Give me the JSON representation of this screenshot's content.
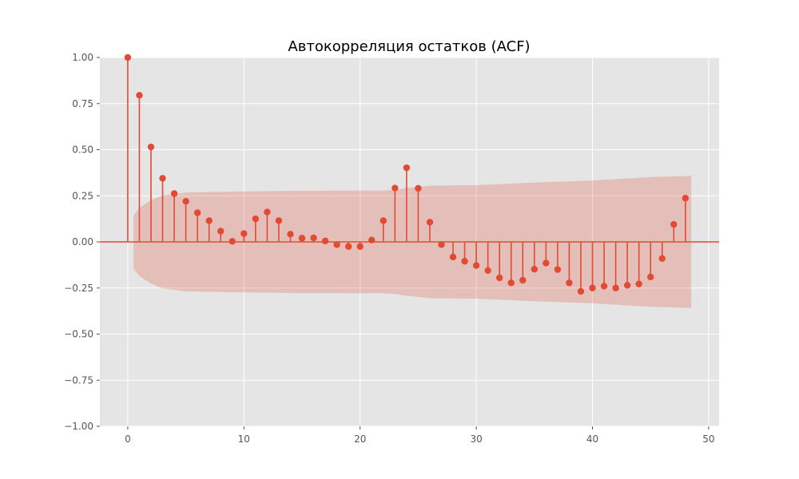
{
  "chart_data": {
    "type": "stem",
    "title": "Автокорреляция остатков (ACF)",
    "xlabel": "",
    "ylabel": "",
    "xlim": [
      -2.4,
      50.9
    ],
    "ylim": [
      -1.0,
      1.0
    ],
    "x_ticks": [
      0,
      10,
      20,
      30,
      40,
      50
    ],
    "y_ticks": [
      -1.0,
      -0.75,
      -0.5,
      -0.25,
      0.0,
      0.25,
      0.5,
      0.75,
      1.0
    ],
    "x_tick_labels": [
      "0",
      "10",
      "20",
      "30",
      "40",
      "50"
    ],
    "y_tick_labels": [
      "−1.00",
      "−0.75",
      "−0.50",
      "−0.25",
      "0.00",
      "0.25",
      "0.50",
      "0.75",
      "1.00"
    ],
    "grid": true,
    "colors": {
      "stem": "#E24A33",
      "band": "#E24A33",
      "plot_bg": "#E5E5E5",
      "grid": "#FFFFFF",
      "tick_text": "#555555"
    },
    "lags": [
      0,
      1,
      2,
      3,
      4,
      5,
      6,
      7,
      8,
      9,
      10,
      11,
      12,
      13,
      14,
      15,
      16,
      17,
      18,
      19,
      20,
      21,
      22,
      23,
      24,
      25,
      26,
      27,
      28,
      29,
      30,
      31,
      32,
      33,
      34,
      35,
      36,
      37,
      38,
      39,
      40,
      41,
      42,
      43,
      44,
      45,
      46,
      47,
      48
    ],
    "acf": [
      1.0,
      0.795,
      0.515,
      0.345,
      0.262,
      0.22,
      0.158,
      0.115,
      0.058,
      0.003,
      0.045,
      0.125,
      0.162,
      0.115,
      0.042,
      0.02,
      0.022,
      0.005,
      -0.015,
      -0.025,
      -0.025,
      0.01,
      0.115,
      0.292,
      0.402,
      0.29,
      0.107,
      -0.015,
      -0.082,
      -0.105,
      -0.128,
      -0.155,
      -0.195,
      -0.222,
      -0.208,
      -0.148,
      -0.115,
      -0.15,
      -0.222,
      -0.268,
      -0.25,
      -0.24,
      -0.25,
      -0.235,
      -0.228,
      -0.19,
      -0.09,
      0.095,
      0.237
    ],
    "confint_band": {
      "lags": [
        0.5,
        1,
        2,
        3,
        5,
        10,
        15,
        20,
        22,
        23,
        24,
        25,
        26,
        30,
        35,
        40,
        45,
        48.5
      ],
      "upper": [
        0.145,
        0.185,
        0.226,
        0.252,
        0.268,
        0.274,
        0.277,
        0.278,
        0.278,
        0.282,
        0.292,
        0.298,
        0.305,
        0.308,
        0.322,
        0.333,
        0.352,
        0.358
      ],
      "lower": [
        -0.145,
        -0.185,
        -0.226,
        -0.252,
        -0.268,
        -0.274,
        -0.277,
        -0.278,
        -0.278,
        -0.282,
        -0.292,
        -0.298,
        -0.305,
        -0.308,
        -0.322,
        -0.333,
        -0.352,
        -0.358
      ]
    }
  }
}
